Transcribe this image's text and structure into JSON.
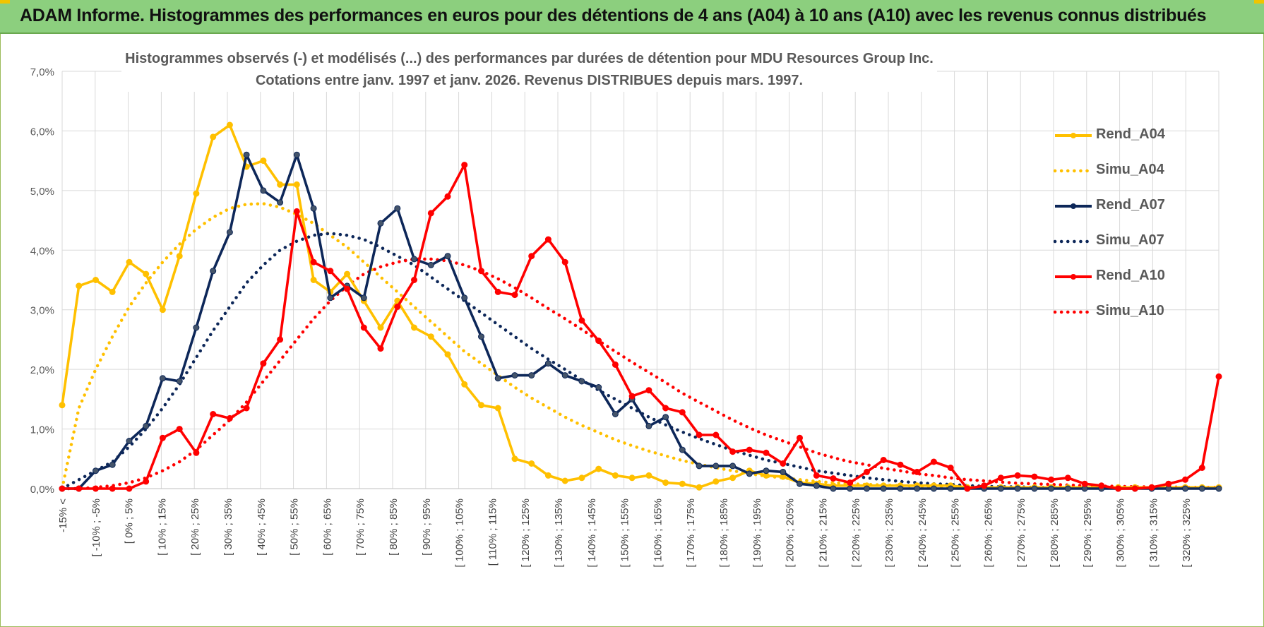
{
  "banner": {
    "title": "ADAM Informe. Histogrammes des performances en euros pour des détentions de 4 ans (A04) à 10 ans (A10) avec les revenus connus distribués"
  },
  "colors": {
    "banner_bg": "#8ccf7e",
    "A04": "#ffc000",
    "A07": "#0d2759",
    "A10": "#ff0000",
    "grid": "#d9d9d9",
    "axis_text": "#595959"
  },
  "chart_data": {
    "type": "line",
    "title": "Histogrammes observés (-) et modélisés (...) des performances par durées de détention pour MDU Resources Group Inc.",
    "subtitle": "Cotations entre janv. 1997 et janv. 2026. Revenus DISTRIBUES depuis mars. 1997.",
    "xlabel": "",
    "ylabel": "",
    "ylim": [
      0,
      7.0
    ],
    "y_ticks": [
      "0,0%",
      "1,0%",
      "2,0%",
      "3,0%",
      "4,0%",
      "5,0%",
      "6,0%",
      "7,0%"
    ],
    "grid": true,
    "legend_position": "right",
    "x_tick_labels": [
      "-15% <",
      "[ -10% ; -5%",
      "[ 0% ; 5%",
      "[ 10% ; 15%",
      "[ 20% ; 25%",
      "[ 30% ; 35%",
      "[ 40% ; 45%",
      "[ 50% ; 55%",
      "[ 60% ; 65%",
      "[ 70% ; 75%",
      "[ 80% ; 85%",
      "[ 90% ; 95%",
      "[ 100% ; 105%",
      "[ 110% ; 115%",
      "[ 120% ; 125%",
      "[ 130% ; 135%",
      "[ 140% ; 145%",
      "[ 150% ; 155%",
      "[ 160% ; 165%",
      "[ 170% ; 175%",
      "[ 180% ; 185%",
      "[ 190% ; 195%",
      "[ 200% ; 205%",
      "[ 210% ; 215%",
      "[ 220% ; 225%",
      "[ 230% ; 235%",
      "[ 240% ; 245%",
      "[ 250% ; 255%",
      "[ 260% ; 265%",
      "[ 270% ; 275%",
      "[ 280% ; 285%",
      "[ 290% ; 295%",
      "[ 300% ; 305%",
      "[ 310% ; 315%",
      "[ 320% ; 325%"
    ],
    "series": [
      {
        "name": "Rend_A04",
        "style": "solid",
        "color": "#ffc000",
        "values": [
          1.4,
          3.4,
          3.5,
          3.3,
          3.8,
          3.6,
          3.0,
          3.9,
          4.95,
          5.9,
          6.1,
          5.4,
          5.5,
          5.1,
          5.1,
          3.5,
          3.3,
          3.6,
          3.15,
          2.7,
          3.15,
          2.7,
          2.55,
          2.25,
          1.75,
          1.4,
          1.35,
          0.5,
          0.42,
          0.22,
          0.13,
          0.18,
          0.33,
          0.22,
          0.18,
          0.22,
          0.1,
          0.08,
          0.02,
          0.12,
          0.18,
          0.3,
          0.22,
          0.2,
          0.1,
          0.08,
          0.05,
          0.05,
          0.05,
          0.05,
          0.05,
          0.05,
          0.05,
          0.05,
          0.02,
          0.02,
          0.02,
          0.02,
          0.02,
          0.02,
          0.02,
          0.02,
          0.02,
          0.02,
          0.02,
          0.02,
          0.02,
          0.02,
          0.02,
          0.02
        ]
      },
      {
        "name": "Simu_A04",
        "style": "dotted",
        "color": "#ffc000",
        "values": [
          0.0,
          1.35,
          2.0,
          2.55,
          3.05,
          3.45,
          3.8,
          4.1,
          4.35,
          4.55,
          4.7,
          4.77,
          4.78,
          4.72,
          4.6,
          4.45,
          4.25,
          4.05,
          3.8,
          3.55,
          3.3,
          3.05,
          2.8,
          2.55,
          2.3,
          2.1,
          1.9,
          1.7,
          1.52,
          1.36,
          1.2,
          1.06,
          0.94,
          0.82,
          0.72,
          0.63,
          0.55,
          0.47,
          0.41,
          0.35,
          0.3,
          0.25,
          0.21,
          0.18,
          0.15,
          0.12,
          0.1,
          0.08,
          0.07,
          0.06,
          0.05,
          0.04,
          0.03,
          0.025,
          0.02,
          0.015,
          0.01,
          0.01,
          0.01,
          0.01,
          0.01,
          0.01,
          0.01,
          0.01,
          0.01,
          0.01,
          0.01,
          0.01,
          0.01,
          0.01
        ]
      },
      {
        "name": "Rend_A07",
        "style": "solid",
        "color": "#0d2759",
        "values": [
          0.0,
          0.0,
          0.3,
          0.4,
          0.8,
          1.05,
          1.85,
          1.8,
          2.7,
          3.65,
          4.3,
          5.6,
          5.0,
          4.8,
          5.6,
          4.7,
          3.2,
          3.4,
          3.2,
          4.45,
          4.7,
          3.85,
          3.75,
          3.9,
          3.2,
          2.55,
          1.85,
          1.9,
          1.9,
          2.1,
          1.9,
          1.8,
          1.7,
          1.25,
          1.5,
          1.05,
          1.2,
          0.65,
          0.38,
          0.38,
          0.38,
          0.25,
          0.3,
          0.28,
          0.08,
          0.05,
          0.0,
          0.0,
          0.0,
          0.0,
          0.0,
          0.0,
          0.0,
          0.0,
          0.0,
          0.0,
          0.0,
          0.0,
          0.0,
          0.0,
          0.0,
          0.0,
          0.0,
          0.0,
          0.0,
          0.0,
          0.0,
          0.0,
          0.0,
          0.0
        ]
      },
      {
        "name": "Simu_A07",
        "style": "dotted",
        "color": "#0d2759",
        "values": [
          0.0,
          0.15,
          0.3,
          0.45,
          0.7,
          1.0,
          1.35,
          1.75,
          2.2,
          2.65,
          3.05,
          3.45,
          3.75,
          4.0,
          4.15,
          4.25,
          4.28,
          4.25,
          4.18,
          4.05,
          3.9,
          3.75,
          3.55,
          3.35,
          3.15,
          2.95,
          2.75,
          2.55,
          2.35,
          2.17,
          2.0,
          1.82,
          1.65,
          1.5,
          1.35,
          1.2,
          1.07,
          0.95,
          0.84,
          0.74,
          0.64,
          0.56,
          0.48,
          0.42,
          0.36,
          0.3,
          0.26,
          0.22,
          0.18,
          0.15,
          0.12,
          0.1,
          0.08,
          0.07,
          0.05,
          0.04,
          0.03,
          0.03,
          0.02,
          0.02,
          0.01,
          0.01,
          0.01,
          0.01,
          0.01,
          0.01,
          0.01,
          0.01,
          0.01,
          0.01
        ]
      },
      {
        "name": "Rend_A10",
        "style": "solid",
        "color": "#ff0000",
        "values": [
          0.0,
          0.0,
          0.0,
          0.0,
          0.0,
          0.12,
          0.85,
          1.0,
          0.6,
          1.25,
          1.18,
          1.35,
          2.1,
          2.5,
          4.65,
          3.8,
          3.65,
          3.35,
          2.7,
          2.35,
          3.05,
          3.5,
          4.62,
          4.9,
          5.43,
          3.65,
          3.3,
          3.25,
          3.9,
          4.18,
          3.8,
          2.82,
          2.48,
          2.08,
          1.55,
          1.65,
          1.35,
          1.28,
          0.9,
          0.9,
          0.62,
          0.65,
          0.6,
          0.42,
          0.85,
          0.22,
          0.17,
          0.1,
          0.28,
          0.48,
          0.4,
          0.28,
          0.45,
          0.35,
          0.0,
          0.05,
          0.18,
          0.22,
          0.2,
          0.15,
          0.18,
          0.08,
          0.05,
          0.0,
          0.0,
          0.02,
          0.08,
          0.15,
          0.35,
          1.88
        ]
      },
      {
        "name": "Simu_A10",
        "style": "dotted",
        "color": "#ff0000",
        "values": [
          0.0,
          0.0,
          0.02,
          0.05,
          0.1,
          0.18,
          0.3,
          0.45,
          0.65,
          0.9,
          1.15,
          1.45,
          1.8,
          2.15,
          2.5,
          2.85,
          3.15,
          3.4,
          3.6,
          3.72,
          3.8,
          3.85,
          3.85,
          3.82,
          3.75,
          3.65,
          3.52,
          3.37,
          3.2,
          3.02,
          2.85,
          2.67,
          2.48,
          2.3,
          2.12,
          1.95,
          1.78,
          1.6,
          1.45,
          1.3,
          1.15,
          1.02,
          0.9,
          0.8,
          0.7,
          0.6,
          0.52,
          0.45,
          0.4,
          0.34,
          0.3,
          0.25,
          0.22,
          0.18,
          0.15,
          0.13,
          0.11,
          0.09,
          0.08,
          0.07,
          0.06,
          0.05,
          0.04,
          0.04,
          0.03,
          0.03,
          0.03,
          0.02,
          0.02,
          0.02
        ]
      }
    ]
  }
}
